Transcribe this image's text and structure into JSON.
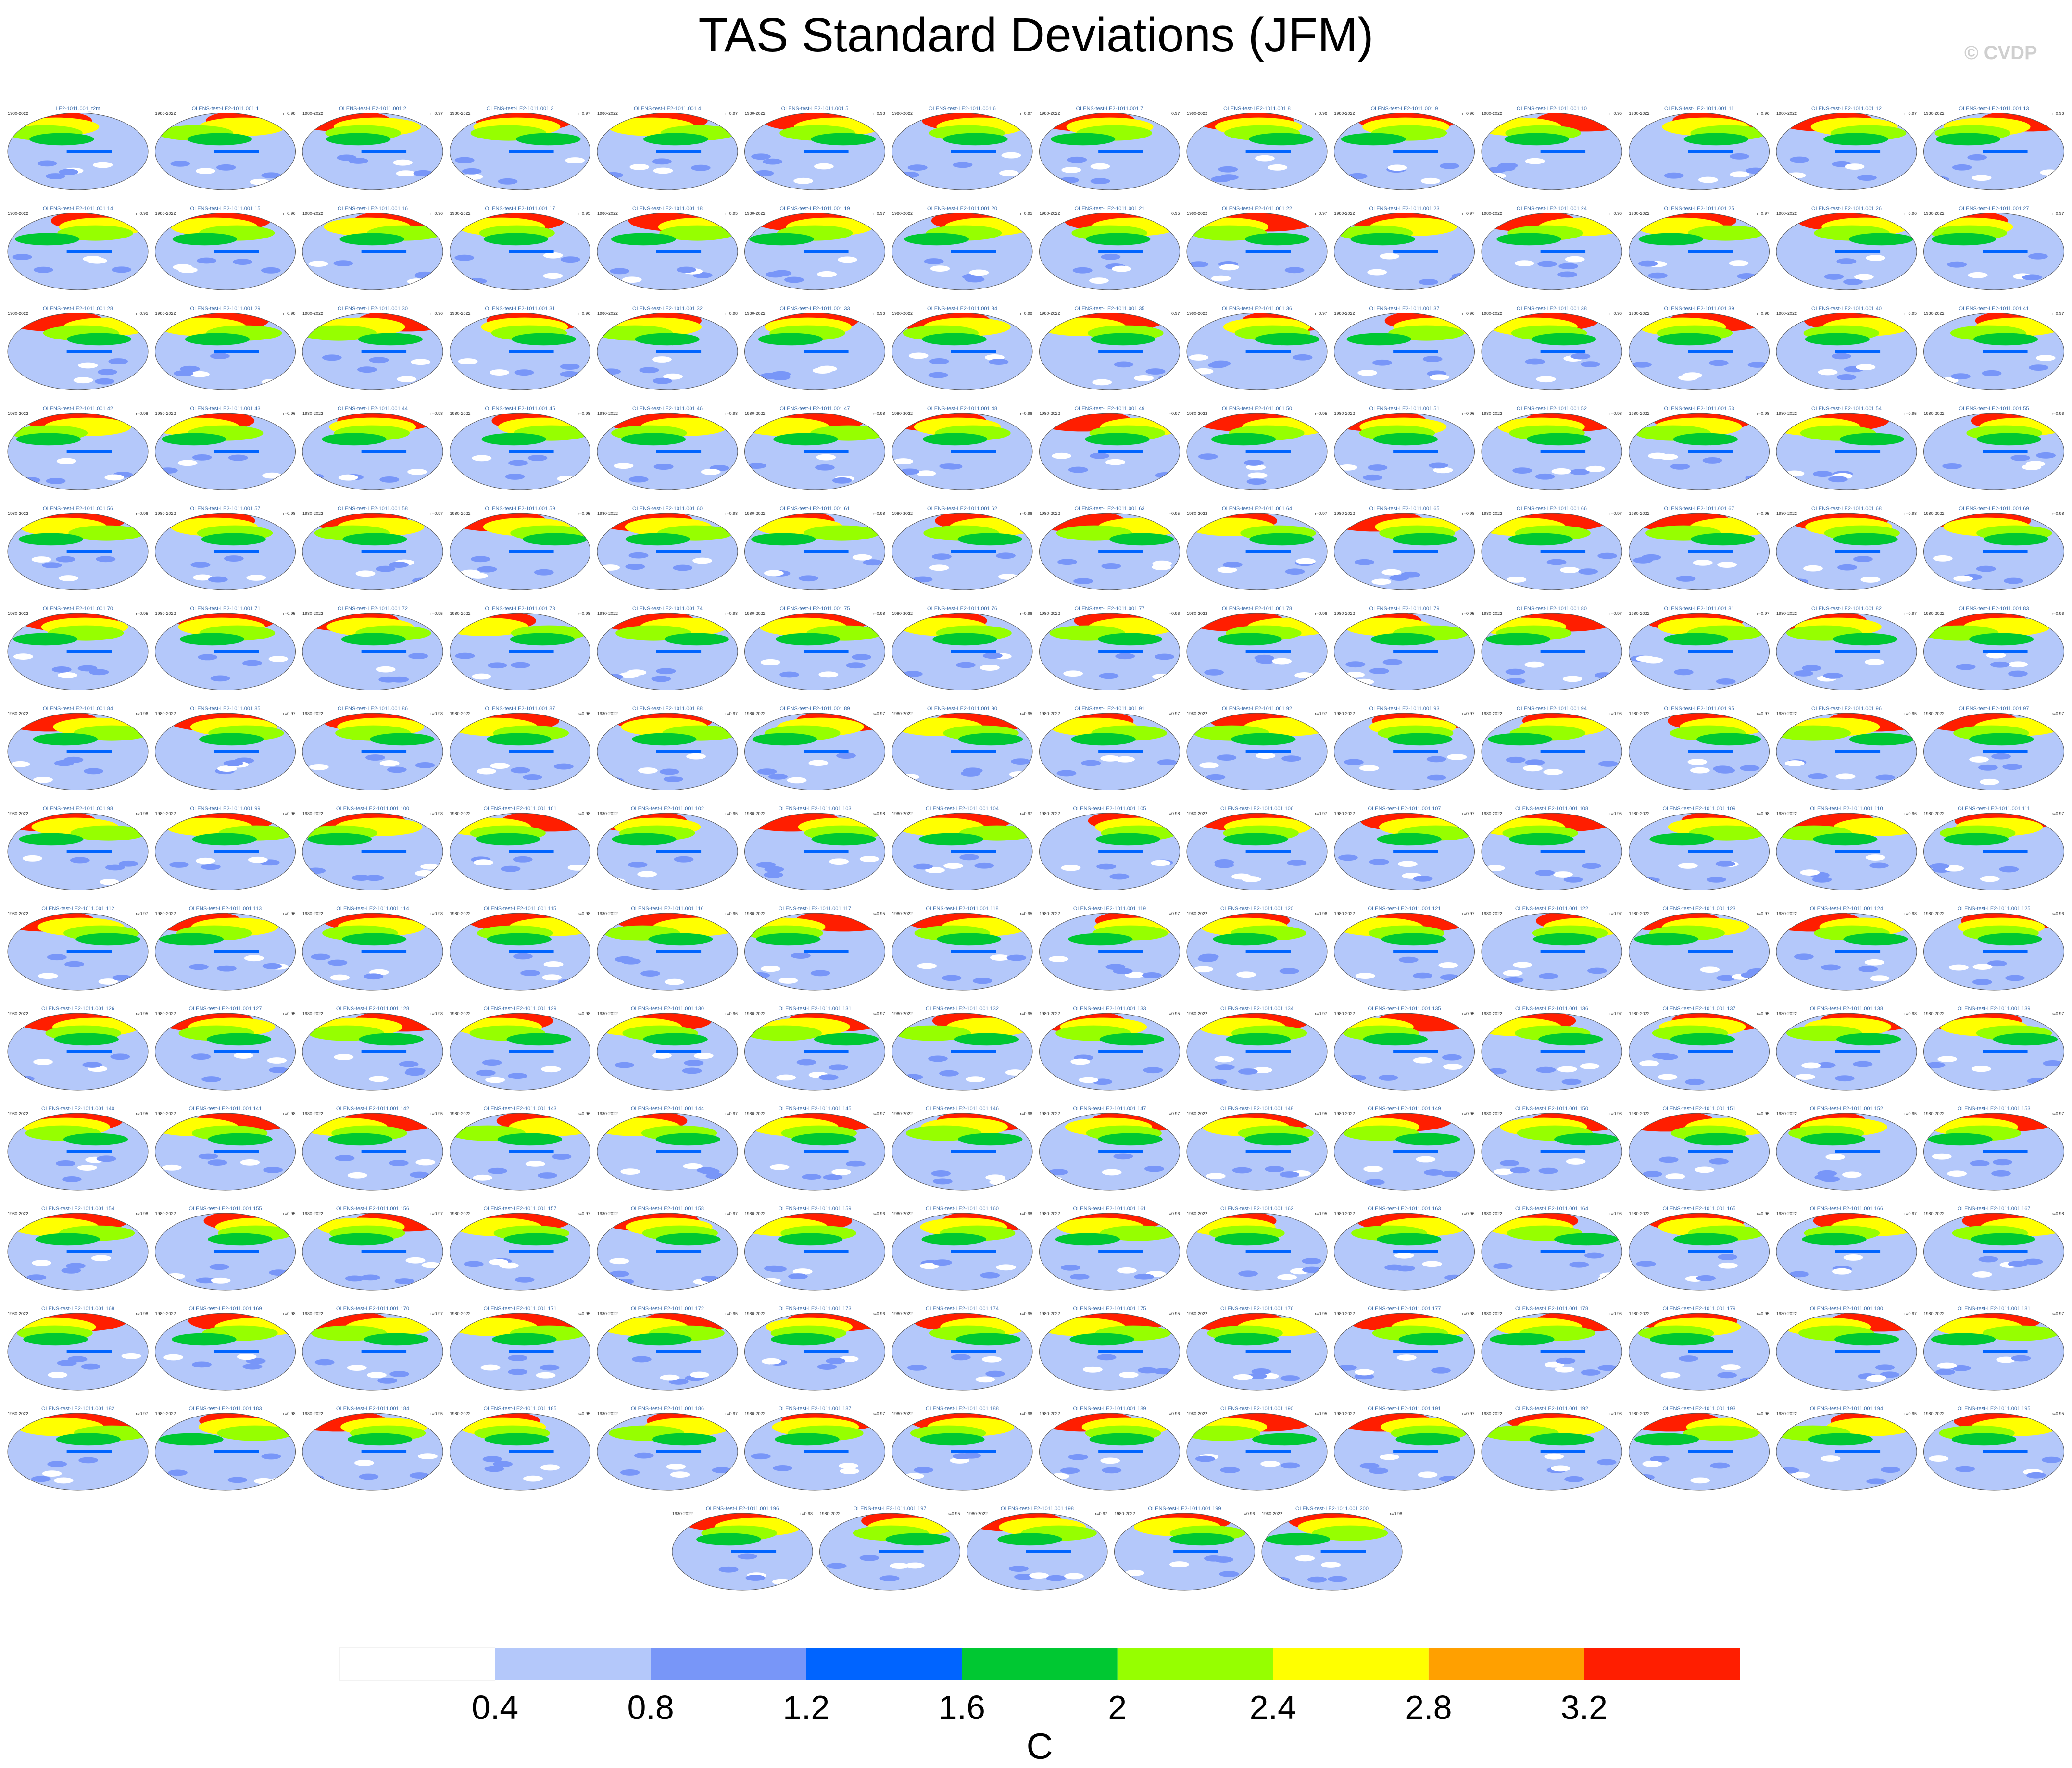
{
  "title": "TAS Standard Deviations (JFM)",
  "watermark": "© CVDP",
  "chart_data": {
    "type": "heatmap",
    "title": "TAS Standard Deviations (JFM)",
    "panel_count": 201,
    "panels": [
      {
        "title": "LE2-1011.001_t2m",
        "years": "1980-2022",
        "r": ""
      },
      {
        "title": "OLENS-test-LE2-1011.001 1",
        "years": "1980-2022",
        "r": "r=0.98"
      },
      {
        "title": "OLENS-test-LE2-1011.001 2",
        "years": "1980-2022",
        "r": "r=0.97"
      },
      {
        "title": "OLENS-test-LE2-1011.001 3",
        "years": "1980-2022",
        "r": "r=0.97"
      },
      {
        "title": "OLENS-test-LE2-1011.001 4",
        "years": "1980-2022",
        "r": "r=0.97"
      },
      {
        "title": "OLENS-test-LE2-1011.001 5",
        "years": "1980-2022",
        "r": "r=0.98"
      },
      {
        "title": "OLENS-test-LE2-1011.001 6",
        "years": "1980-2022",
        "r": "r=0.97"
      },
      {
        "title": "OLENS-test-LE2-1011.001 7",
        "years": "1980-2022",
        "r": "r=0.97"
      },
      {
        "title": "OLENS-test-LE2-1011.001 8",
        "years": "1980-2022",
        "r": "r=0.96"
      },
      {
        "title": "OLENS-test-LE2-1011.001 9",
        "years": "1980-2022",
        "r": "r=0.96"
      },
      {
        "title": "OLENS-test-LE2-1011.001 10",
        "years": "1980-2022",
        "r": "r=0.95"
      },
      {
        "title": "OLENS-test-LE2-1011.001 11",
        "years": "1980-2022",
        "r": "r=0.96"
      },
      {
        "title": "OLENS-test-LE2-1011.001 12",
        "years": "1980-2022",
        "r": "r=0.97"
      },
      {
        "title": "OLENS-test-LE2-1011.001 13",
        "years": "1980-2022",
        "r": "r=0.96"
      }
    ],
    "colorbar": {
      "colors": [
        "#ffffff",
        "#b4c8fa",
        "#7896f8",
        "#0064ff",
        "#00c832",
        "#96ff00",
        "#ffff00",
        "#ffa000",
        "#ff1e00"
      ],
      "tick_labels": [
        "0.4",
        "0.8",
        "1.2",
        "1.6",
        "2",
        "2.4",
        "2.8",
        "3.2"
      ],
      "unit": "C"
    }
  }
}
